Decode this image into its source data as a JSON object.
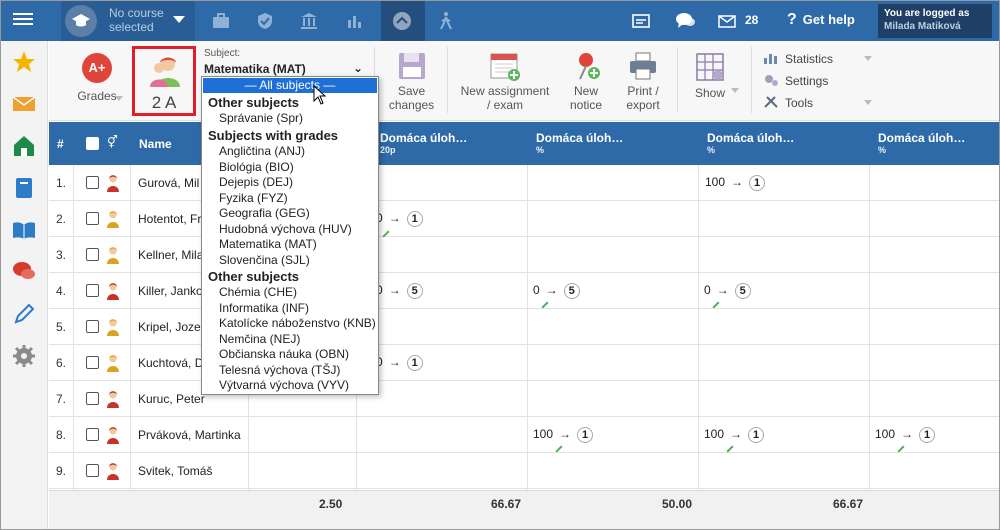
{
  "topbar": {
    "course_line1": "No course",
    "course_line2": "selected",
    "message_count": "28",
    "help_label": "Get help",
    "user_line1": "You are logged as",
    "user_line2": "Milada Matiková"
  },
  "toolbar": {
    "grades_label": "Grades",
    "grades_icon_text": "A+",
    "class_label": "2 A",
    "subject_label": "Subject:",
    "subject_value": "Matematika (MAT)",
    "save_label_1": "Save",
    "save_label_2": "changes",
    "new_assignment_1": "New assignment",
    "new_assignment_2": "/ exam",
    "new_notice_1": "New",
    "new_notice_2": "notice",
    "print_1": "Print /",
    "print_2": "export",
    "show_label": "Show",
    "statistics_label": "Statistics",
    "settings_label": "Settings",
    "tools_label": "Tools"
  },
  "dropdown": {
    "selected": "— All subjects —",
    "group1": "Other subjects",
    "group1_items": [
      "Správanie (Spr)"
    ],
    "group2": "Subjects with grades",
    "group2_items": [
      "Angličtina (ANJ)",
      "Biológia (BIO)",
      "Dejepis (DEJ)",
      "Fyzika (FYZ)",
      "Geografia (GEG)",
      "Hudobná výchova (HUV)",
      "Matematika (MAT)",
      "Slovenčina (SJL)"
    ],
    "group3": "Other subjects",
    "group3_items": [
      "Chémia (CHE)",
      "Informatika (INF)",
      "Katolícke náboženstvo (KNB)",
      "Nemčina (NEJ)",
      "Občianska náuka (OBN)",
      "Telesná výchova (TŠJ)",
      "Výtvarná výchova (VYV)"
    ]
  },
  "grid": {
    "header_hash": "#",
    "header_name": "Name",
    "columns": [
      {
        "title": "Domáca úloh…",
        "sub": "20p"
      },
      {
        "title": "Domáca úloh…",
        "sub": "%"
      },
      {
        "title": "Domáca úloh…",
        "sub": "%"
      },
      {
        "title": "Domáca úloh…",
        "sub": "%"
      }
    ],
    "rows": [
      {
        "num": "1.",
        "name": "Gurová, Mil",
        "gender": "f"
      },
      {
        "num": "2.",
        "name": "Hotentot, Fr",
        "gender": "m"
      },
      {
        "num": "3.",
        "name": "Kellner, Mila",
        "gender": "m"
      },
      {
        "num": "4.",
        "name": "Killer, Janko",
        "gender": "f"
      },
      {
        "num": "5.",
        "name": "Kripel, Joze",
        "gender": "m"
      },
      {
        "num": "6.",
        "name": "Kuchtová, D",
        "gender": "m"
      },
      {
        "num": "7.",
        "name": "Kuruc, Peter",
        "gender": "f"
      },
      {
        "num": "8.",
        "name": "Prváková, Martinka",
        "gender": "f"
      },
      {
        "num": "9.",
        "name": "Svitek, Tomáš",
        "gender": "f"
      }
    ],
    "cells": {
      "r1c3_val": "100",
      "r1c3_grade": "1",
      "r2c1_val": "0",
      "r2c1_grade": "1",
      "r4c1_val": "0",
      "r4c1_grade": "5",
      "r4c2_val": "0",
      "r4c2_grade": "5",
      "r4c3_val": "0",
      "r4c3_grade": "5",
      "r6c1_val": "0",
      "r6c1_grade": "1",
      "r8c2_val": "100",
      "r8c2_grade": "1",
      "r8c3_val": "100",
      "r8c3_grade": "1",
      "r8c4_val": "100",
      "r8c4_grade": "1",
      "arrow": "→"
    },
    "averages": [
      "2.50",
      "66.67",
      "50.00",
      "66.67"
    ]
  },
  "colors": {
    "primary": "#2f6aa8",
    "highlight_border": "#e21e2b",
    "dropdown_selected": "#1e70d6"
  }
}
